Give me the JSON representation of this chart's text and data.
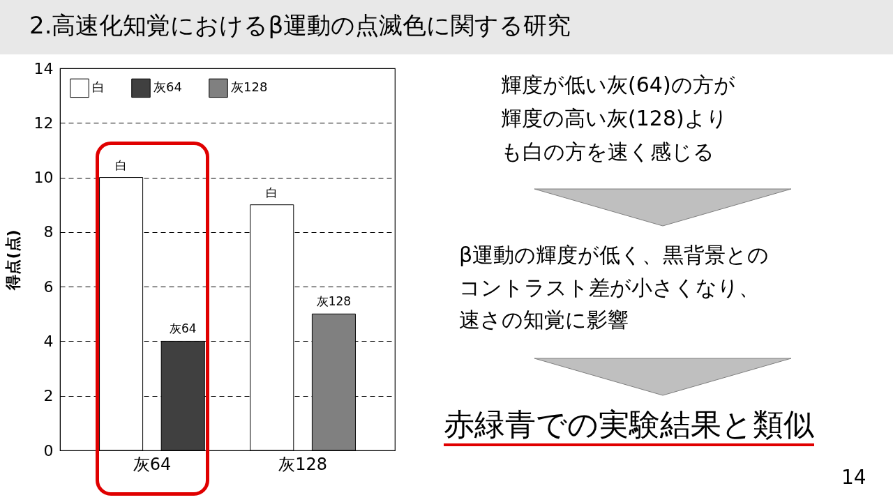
{
  "chart_data": {
    "type": "bar",
    "title": "2.高速化知覚におけるβ運動の点滅色に関する研究",
    "ylabel": "得点(点)",
    "categories": [
      "灰64",
      "灰128"
    ],
    "series": [
      {
        "name": "白",
        "color": "#ffffff",
        "values": [
          10,
          9
        ]
      },
      {
        "name": "灰64",
        "color": "#404040",
        "values": [
          4,
          null
        ]
      },
      {
        "name": "灰128",
        "color": "#808080",
        "values": [
          null,
          5
        ]
      }
    ],
    "ylim": [
      0,
      14
    ],
    "yticks": [
      0,
      2,
      4,
      6,
      8,
      10,
      12,
      14
    ],
    "grid": "y",
    "legend": "top left",
    "annotations": [
      "輝度が低い灰(64)の方が輝度の高い灰(128)よりも白の方を速く感じる",
      "β運動の輝度が低く、黒背景とのコントラスト差が小さくなり、速さの知覚に影響",
      "赤緑青での実験結果と類似",
      "14"
    ]
  }
}
